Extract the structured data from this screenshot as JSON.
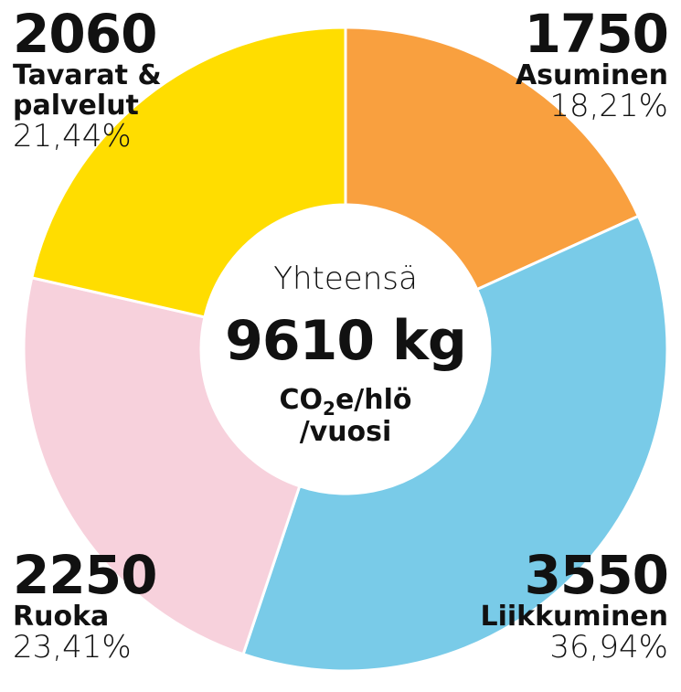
{
  "chart_data": {
    "type": "donut",
    "categories": [
      "Asuminen",
      "Liikkuminen",
      "Ruoka",
      "Tavarat & palvelut"
    ],
    "values": [
      1750,
      3550,
      2250,
      2060
    ],
    "percent_labels": [
      "18,21%",
      "36,94%",
      "23,41%",
      "21,44%"
    ],
    "colors": [
      "#f9a03f",
      "#79cbe8",
      "#f7d1dc",
      "#ffdd00"
    ],
    "center_title": "Yhteensä",
    "total": "9610 kg",
    "unit": [
      "CO",
      "2",
      "e/hlö",
      "/vuosi"
    ]
  }
}
